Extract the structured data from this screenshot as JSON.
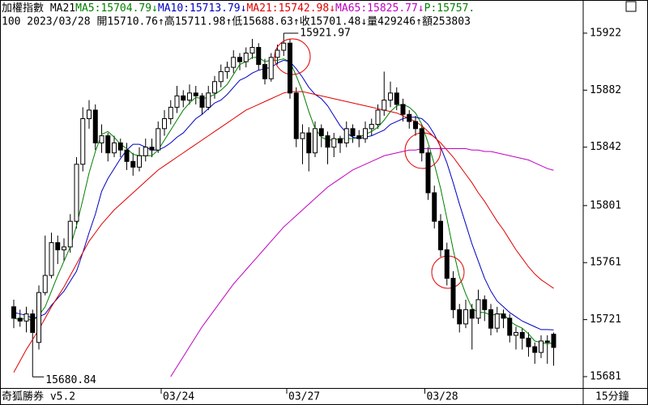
{
  "chart_data": {
    "type": "candlestick",
    "header": [
      {
        "text": "加權指數 MA21",
        "color": "#000000"
      },
      {
        "text": "MA5:15704.79↓",
        "color": "#008000"
      },
      {
        "text": "MA10:15713.79↓",
        "color": "#0000c0"
      },
      {
        "text": "MA21:15742.98↓",
        "color": "#e00000"
      },
      {
        "text": "MA65:15825.77↓",
        "color": "#c000c0"
      },
      {
        "text": "P:15757.",
        "color": "#008000"
      }
    ],
    "info": "100 2023/03/28 開15710.76↑高15711.98↑低15688.63↑收15701.48↓量429246↑額253803",
    "categories": [
      null,
      null,
      null,
      null,
      null,
      null,
      null,
      null,
      null,
      null,
      null,
      null,
      null,
      null,
      null,
      null,
      null,
      null,
      null,
      null,
      null,
      null,
      null,
      null,
      "03/24",
      null,
      null,
      null,
      null,
      null,
      null,
      null,
      null,
      null,
      null,
      null,
      null,
      null,
      null,
      null,
      null,
      null,
      null,
      null,
      "03/27",
      null,
      null,
      null,
      null,
      null,
      null,
      null,
      null,
      null,
      null,
      null,
      null,
      null,
      null,
      null,
      null,
      null,
      null,
      null,
      null,
      null,
      "03/28",
      null,
      null,
      null,
      null,
      null,
      null,
      null,
      null,
      null,
      null,
      null,
      null,
      null,
      null,
      null,
      null,
      null,
      null,
      null,
      null
    ],
    "open": [
      15730,
      15722,
      15720,
      15725,
      15705,
      15740,
      15752,
      15775,
      15770,
      15772,
      15790,
      15830,
      15862,
      15868,
      15845,
      15850,
      15838,
      15845,
      15840,
      15832,
      15828,
      15836,
      15842,
      15840,
      15855,
      15862,
      15870,
      15878,
      15875,
      15880,
      15878,
      15870,
      15880,
      15888,
      15895,
      15898,
      15905,
      15902,
      15908,
      15912,
      15900,
      15890,
      15905,
      15910,
      15915,
      15880,
      15848,
      15852,
      15838,
      15855,
      15850,
      15842,
      15848,
      15845,
      15855,
      15850,
      15848,
      15855,
      15858,
      15868,
      15875,
      15880,
      15872,
      15865,
      15860,
      15855,
      15838,
      15810,
      15790,
      15770,
      15750,
      15728,
      15718,
      15728,
      15722,
      15735,
      15728,
      15715,
      15725,
      15722,
      15710,
      15712,
      15708,
      15702,
      15698,
      15706,
      15710.76
    ],
    "high": [
      15735,
      15728,
      15730,
      15728,
      15745,
      15780,
      15782,
      15780,
      15778,
      15795,
      15835,
      15870,
      15875,
      15872,
      15858,
      15852,
      15850,
      15848,
      15845,
      15838,
      15842,
      15848,
      15848,
      15860,
      15868,
      15875,
      15885,
      15882,
      15886,
      15885,
      15880,
      15885,
      15892,
      15900,
      15902,
      15910,
      15908,
      15912,
      15918,
      15915,
      15904,
      15908,
      15914,
      15921.97,
      15918,
      15884,
      15858,
      15856,
      15860,
      15858,
      15853,
      15852,
      15850,
      15860,
      15858,
      15854,
      15860,
      15862,
      15872,
      15895,
      15888,
      15884,
      15876,
      15868,
      15864,
      15858,
      15842,
      15815,
      15795,
      15775,
      15755,
      15732,
      15735,
      15732,
      15742,
      15738,
      15732,
      15730,
      15728,
      15725,
      15716,
      15715,
      15712,
      15705,
      15710,
      15710,
      15711.98
    ],
    "low": [
      15715,
      15716,
      15712,
      15680.84,
      15700,
      15738,
      15750,
      15760,
      15762,
      15768,
      15785,
      15825,
      15855,
      15840,
      15838,
      15832,
      15835,
      15835,
      15826,
      15822,
      15825,
      15832,
      15835,
      15838,
      15850,
      15858,
      15866,
      15870,
      15872,
      15872,
      15865,
      15868,
      15876,
      15884,
      15890,
      15894,
      15896,
      15898,
      15904,
      15896,
      15886,
      15888,
      15900,
      15906,
      15876,
      15842,
      15830,
      15825,
      15835,
      15842,
      15830,
      15835,
      15838,
      15842,
      15845,
      15842,
      15845,
      15850,
      15855,
      15864,
      15870,
      15868,
      15860,
      15855,
      15850,
      15832,
      15805,
      15785,
      15765,
      15745,
      15722,
      15712,
      15715,
      15700,
      15718,
      15720,
      15710,
      15712,
      15715,
      15705,
      15700,
      15700,
      15695,
      15690,
      15694,
      15690,
      15688.63
    ],
    "close": [
      15722,
      15720,
      15725,
      15712,
      15740,
      15752,
      15775,
      15770,
      15772,
      15790,
      15830,
      15862,
      15868,
      15845,
      15850,
      15838,
      15845,
      15840,
      15832,
      15828,
      15836,
      15842,
      15840,
      15855,
      15862,
      15870,
      15878,
      15875,
      15880,
      15878,
      15870,
      15880,
      15888,
      15895,
      15898,
      15905,
      15902,
      15908,
      15912,
      15900,
      15890,
      15905,
      15910,
      15915,
      15880,
      15848,
      15852,
      15838,
      15855,
      15850,
      15842,
      15848,
      15845,
      15855,
      15850,
      15848,
      15855,
      15858,
      15868,
      15875,
      15880,
      15872,
      15865,
      15860,
      15855,
      15838,
      15810,
      15790,
      15770,
      15750,
      15728,
      15718,
      15728,
      15722,
      15735,
      15728,
      15715,
      15725,
      15722,
      15710,
      15712,
      15708,
      15702,
      15698,
      15706,
      15705,
      15701.48
    ],
    "up_color": "#ffffff",
    "down_color": "#000000",
    "series": [
      {
        "color": "#008000",
        "values": [
          15722,
          15721,
          15722,
          15720,
          15724,
          15730,
          15741,
          15752,
          15762,
          15772,
          15787,
          15805,
          15824,
          15839,
          15851,
          15853,
          15849,
          15844,
          15841,
          15837,
          15836,
          15836,
          15836,
          15840,
          15847,
          15854,
          15861,
          15868,
          15873,
          15877,
          15876,
          15877,
          15879,
          15882,
          15886,
          15893,
          15900,
          15902,
          15905,
          15905,
          15902,
          15903,
          15903,
          15904,
          15902,
          15892,
          15881,
          15867,
          15855,
          15849,
          15847,
          15847,
          15848,
          15848,
          15848,
          15849,
          15851,
          15853,
          15856,
          15861,
          15867,
          15871,
          15872,
          15870,
          15866,
          15858,
          15845,
          15830,
          15813,
          15792,
          15770,
          15751,
          15739,
          15729,
          15726,
          15726,
          15724,
          15725,
          15725,
          15720,
          15717,
          15715,
          15711,
          15706,
          15705,
          15704,
          15704.79
        ]
      },
      {
        "color": "#0000c0",
        "values": [
          15726,
          15725,
          15724,
          15722,
          15723,
          15725,
          15731,
          15736,
          15741,
          15748,
          15755,
          15768,
          15782,
          15795,
          15811,
          15820,
          15827,
          15834,
          15840,
          15844,
          15844,
          15842,
          15840,
          15840,
          15842,
          15845,
          15849,
          15852,
          15857,
          15862,
          15865,
          15869,
          15873,
          15875,
          15879,
          15884,
          15889,
          15891,
          15894,
          15896,
          15897,
          15898,
          15901,
          15903,
          15902,
          15897,
          15891,
          15884,
          15879,
          15876,
          15871,
          15864,
          15857,
          15852,
          15849,
          15848,
          15849,
          15850,
          15852,
          15854,
          15858,
          15860,
          15862,
          15863,
          15863,
          15862,
          15858,
          15851,
          15842,
          15831,
          15817,
          15802,
          15788,
          15774,
          15762,
          15750,
          15741,
          15734,
          15730,
          15726,
          15723,
          15720,
          15718,
          15716,
          15714,
          15714,
          15713.79
        ]
      },
      {
        "color": "#e00000",
        "values": [
          15684,
          15692,
          15700,
          15707,
          15714,
          15722,
          15730,
          15737,
          15744,
          15752,
          15760,
          15768,
          15776,
          15782,
          15788,
          15793,
          15798,
          15802,
          15806,
          15810,
          15814,
          15818,
          15822,
          15826,
          15829,
          15832,
          15835,
          15838,
          15841,
          15844,
          15847,
          15850,
          15853,
          15856,
          15859,
          15862,
          15865,
          15868,
          15870,
          15872,
          15874,
          15876,
          15878,
          15880,
          15881,
          15881,
          15881,
          15880,
          15879,
          15878,
          15877,
          15876,
          15875,
          15874,
          15873,
          15872,
          15871,
          15870,
          15869,
          15868,
          15867,
          15866,
          15864,
          15862,
          15860,
          15857,
          15853,
          15849,
          15845,
          15840,
          15835,
          15829,
          15823,
          15817,
          15810,
          15804,
          15797,
          15790,
          15784,
          15777,
          15770,
          15764,
          15758,
          15753,
          15749,
          15746,
          15742.98
        ]
      },
      {
        "color": "#c000c0",
        "values": [
          null,
          null,
          null,
          null,
          null,
          null,
          null,
          null,
          null,
          null,
          null,
          null,
          null,
          null,
          null,
          null,
          null,
          null,
          null,
          null,
          null,
          null,
          null,
          null,
          null,
          15681,
          15688,
          15695,
          15702,
          15709,
          15716,
          15722,
          15728,
          15734,
          15740,
          15746,
          15751,
          15756,
          15761,
          15766,
          15771,
          15776,
          15781,
          15786,
          15790,
          15794,
          15798,
          15802,
          15806,
          15810,
          15814,
          15817,
          15820,
          15823,
          15826,
          15828,
          15830,
          15832,
          15834,
          15836,
          15837,
          15838,
          15839,
          15840,
          15840,
          15841,
          15841,
          15841,
          15841,
          15841,
          15841,
          15841,
          15841,
          15840,
          15840,
          15839,
          15839,
          15838,
          15837,
          15836,
          15835,
          15834,
          15833,
          15831,
          15829,
          15827,
          15825.77
        ]
      }
    ],
    "ylim": [
      15673.6,
      15924.8
    ],
    "yticks": [
      15681,
      15721,
      15761,
      15801,
      15842,
      15882,
      15922
    ],
    "high_label": 15921.97,
    "low_label": 15680.84,
    "footer_left": "奇狐勝券 v5.2",
    "period": "15分鐘"
  }
}
